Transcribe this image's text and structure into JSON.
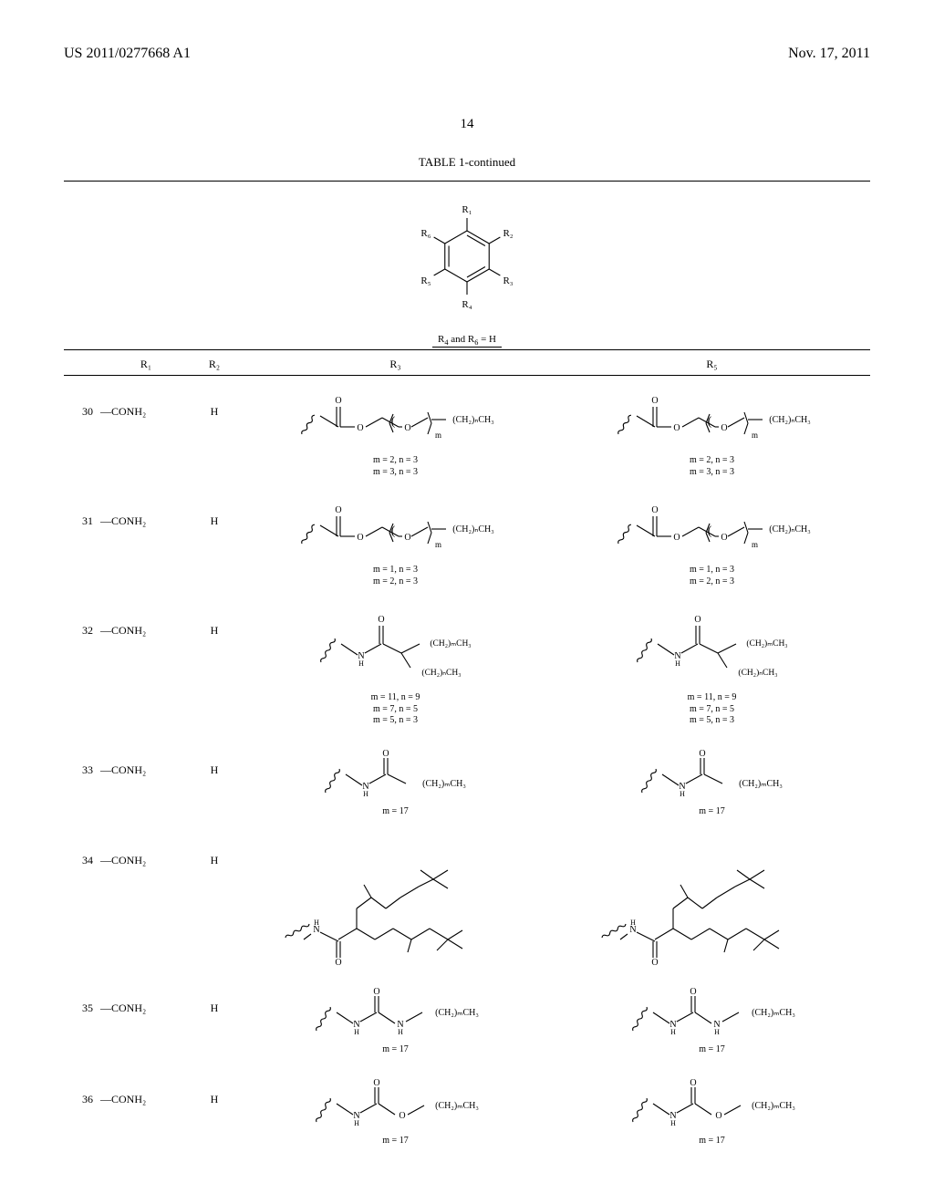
{
  "header": {
    "pub_number": "US 2011/0277668 A1",
    "date": "Nov. 17, 2011"
  },
  "page_number": "14",
  "table_title": "TABLE 1-continued",
  "schema_note_prefix": "R",
  "schema_note_sub4": "4",
  "schema_note_mid": " and R",
  "schema_note_sub6": "6",
  "schema_note_suffix": " = H",
  "col_headers": {
    "idx": "",
    "r1": "R₁",
    "r2": "R₂",
    "r3": "R₃",
    "r5": "R₅"
  },
  "rows": [
    {
      "idx": "30",
      "r1": "—CONH₂",
      "r2": "H",
      "kind": "ester_ether",
      "params_r3": [
        "m = 2, n = 3",
        "m = 3, n = 3"
      ],
      "params_r5": [
        "m = 2, n = 3",
        "m = 3, n = 3"
      ]
    },
    {
      "idx": "31",
      "r1": "—CONH₂",
      "r2": "H",
      "kind": "ester_ether",
      "params_r3": [
        "m = 1, n = 3",
        "m = 2, n = 3"
      ],
      "params_r5": [
        "m = 1, n = 3",
        "m = 2, n = 3"
      ]
    },
    {
      "idx": "32",
      "r1": "—CONH₂",
      "r2": "H",
      "kind": "amide_branch",
      "params_r3": [
        "m = 11, n = 9",
        "m = 7, n = 5",
        "m = 5, n = 3"
      ],
      "params_r5": [
        "m = 11, n = 9",
        "m = 7, n = 5",
        "m = 5, n = 3"
      ]
    },
    {
      "idx": "33",
      "r1": "—CONH₂",
      "r2": "H",
      "kind": "amide_linear",
      "params_r3": [
        "m = 17"
      ],
      "params_r5": [
        "m = 17"
      ]
    },
    {
      "idx": "34",
      "r1": "—CONH₂",
      "r2": "H",
      "kind": "amide_bigbranch",
      "params_r3": [],
      "params_r5": []
    },
    {
      "idx": "35",
      "r1": "—CONH₂",
      "r2": "H",
      "kind": "urea",
      "params_r3": [
        "m = 17"
      ],
      "params_r5": [
        "m = 17"
      ]
    },
    {
      "idx": "36",
      "r1": "—CONH₂",
      "r2": "H",
      "kind": "carbamate",
      "params_r3": [
        "m = 17"
      ],
      "params_r5": [
        "m = 17"
      ]
    }
  ],
  "labels": {
    "R1": "R₁",
    "R2": "R₂",
    "R3": "R₃",
    "R4": "R₄",
    "R5": "R₅",
    "R6": "R₆",
    "chain_n": "(CH₂)ₙCH₃",
    "chain_m": "(CH₂)ₘCH₃",
    "sub_m": "m",
    "O": "O",
    "N": "N",
    "H": "H"
  },
  "style": {
    "stroke": "#000000",
    "stroke_width": 1.1,
    "font": "Times New Roman",
    "font_size_small": 9,
    "font_size_label": 10
  }
}
